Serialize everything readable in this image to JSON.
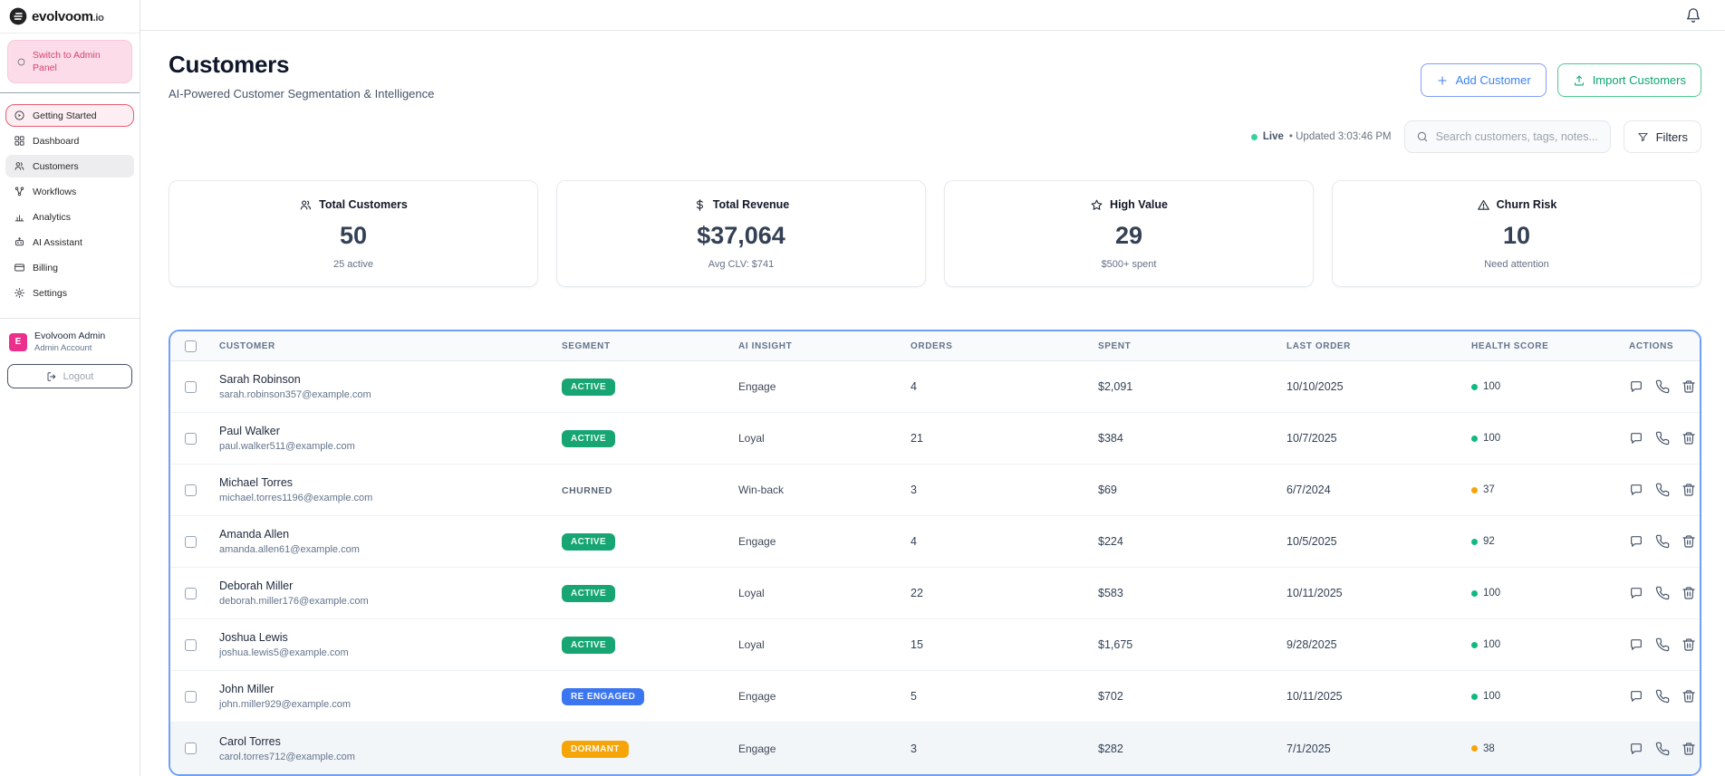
{
  "brand": {
    "name": "evolvoom",
    "tld": ".io"
  },
  "sidebar": {
    "switch_label": "Switch to Admin Panel",
    "items": [
      {
        "label": "Getting Started",
        "icon": "play-circle",
        "state": "highlight"
      },
      {
        "label": "Dashboard",
        "icon": "grid",
        "state": ""
      },
      {
        "label": "Customers",
        "icon": "users",
        "state": "active"
      },
      {
        "label": "Workflows",
        "icon": "workflow",
        "state": ""
      },
      {
        "label": "Analytics",
        "icon": "bar-chart",
        "state": ""
      },
      {
        "label": "AI Assistant",
        "icon": "bot",
        "state": ""
      },
      {
        "label": "Billing",
        "icon": "credit-card",
        "state": ""
      },
      {
        "label": "Settings",
        "icon": "gear",
        "state": ""
      }
    ],
    "user": {
      "initial": "E",
      "name": "Evolvoom Admin",
      "role": "Admin Account"
    },
    "logout_label": "Logout"
  },
  "header": {
    "title": "Customers",
    "subtitle": "AI-Powered Customer Segmentation & Intelligence",
    "add_button": "Add Customer",
    "import_button": "Import Customers"
  },
  "statusbar": {
    "live_label": "Live",
    "updated_text": "• Updated 3:03:46 PM",
    "search_placeholder": "Search customers, tags, notes...",
    "filters_label": "Filters"
  },
  "stats": [
    {
      "icon": "users",
      "label": "Total Customers",
      "value": "50",
      "sub": "25 active"
    },
    {
      "icon": "dollar",
      "label": "Total Revenue",
      "value": "$37,064",
      "sub": "Avg CLV: $741"
    },
    {
      "icon": "star",
      "label": "High Value",
      "value": "29",
      "sub": "$500+ spent"
    },
    {
      "icon": "warning",
      "label": "Churn Risk",
      "value": "10",
      "sub": "Need attention"
    }
  ],
  "table": {
    "columns": [
      "CUSTOMER",
      "SEGMENT",
      "AI INSIGHT",
      "ORDERS",
      "SPENT",
      "LAST ORDER",
      "HEALTH SCORE",
      "ACTIONS"
    ],
    "rows": [
      {
        "name": "Sarah Robinson",
        "email": "sarah.robinson357@example.com",
        "segment": "ACTIVE",
        "segment_style": "active",
        "insight": "Engage",
        "orders": "4",
        "spent": "$2,091",
        "last_order": "10/10/2025",
        "health": "100",
        "health_color": "green",
        "row_class": ""
      },
      {
        "name": "Paul Walker",
        "email": "paul.walker511@example.com",
        "segment": "ACTIVE",
        "segment_style": "active",
        "insight": "Loyal",
        "orders": "21",
        "spent": "$384",
        "last_order": "10/7/2025",
        "health": "100",
        "health_color": "green",
        "row_class": ""
      },
      {
        "name": "Michael Torres",
        "email": "michael.torres1196@example.com",
        "segment": "CHURNED",
        "segment_style": "churned",
        "insight": "Win-back",
        "orders": "3",
        "spent": "$69",
        "last_order": "6/7/2024",
        "health": "37",
        "health_color": "orange",
        "row_class": ""
      },
      {
        "name": "Amanda Allen",
        "email": "amanda.allen61@example.com",
        "segment": "ACTIVE",
        "segment_style": "active",
        "insight": "Engage",
        "orders": "4",
        "spent": "$224",
        "last_order": "10/5/2025",
        "health": "92",
        "health_color": "green",
        "row_class": ""
      },
      {
        "name": "Deborah Miller",
        "email": "deborah.miller176@example.com",
        "segment": "ACTIVE",
        "segment_style": "active",
        "insight": "Loyal",
        "orders": "22",
        "spent": "$583",
        "last_order": "10/11/2025",
        "health": "100",
        "health_color": "green",
        "row_class": ""
      },
      {
        "name": "Joshua Lewis",
        "email": "joshua.lewis5@example.com",
        "segment": "ACTIVE",
        "segment_style": "active",
        "insight": "Loyal",
        "orders": "15",
        "spent": "$1,675",
        "last_order": "9/28/2025",
        "health": "100",
        "health_color": "green",
        "row_class": ""
      },
      {
        "name": "John Miller",
        "email": "john.miller929@example.com",
        "segment": "RE ENGAGED",
        "segment_style": "reengaged",
        "insight": "Engage",
        "orders": "5",
        "spent": "$702",
        "last_order": "10/11/2025",
        "health": "100",
        "health_color": "green",
        "row_class": ""
      },
      {
        "name": "Carol Torres",
        "email": "carol.torres712@example.com",
        "segment": "DORMANT",
        "segment_style": "dormant",
        "insight": "Engage",
        "orders": "3",
        "spent": "$282",
        "last_order": "7/1/2025",
        "health": "38",
        "health_color": "orange",
        "row_class": "highlighted"
      }
    ]
  },
  "colors": {
    "active_badge": "#17a673",
    "reengaged_badge": "#3b76f0",
    "dormant_badge": "#f5a508",
    "health_green": "#10b981",
    "health_orange": "#f5a508",
    "table_border": "#6f9ff7",
    "add_button_blue": "#3b82f6",
    "import_button_green": "#10a56f",
    "brand_avatar_pink": "#ec2f8d",
    "live_dot_green": "#34d399",
    "getting_started_border": "#e85d75"
  }
}
